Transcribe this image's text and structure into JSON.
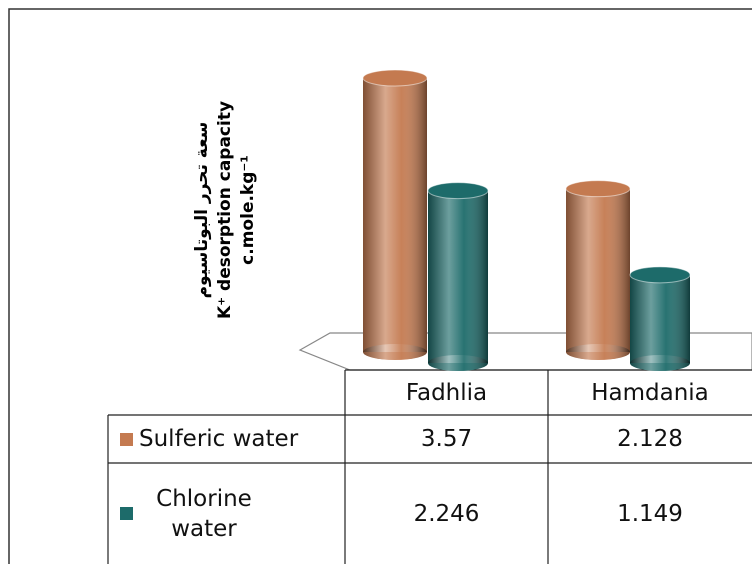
{
  "chart_data": {
    "type": "bar",
    "y_label": [
      "سعة تحرر البوتاسيوم",
      "K⁺ desorption capacity",
      "c.mole.kg⁻¹"
    ],
    "categories": [
      "Fadhlia",
      "Hamdania"
    ],
    "series": [
      {
        "name": "Sulferic water",
        "color": "#c47a50",
        "values": [
          3.57,
          2.128
        ]
      },
      {
        "name": "Chlorine water",
        "color": "#1d6b6a",
        "values": [
          2.246,
          1.149
        ]
      }
    ]
  }
}
